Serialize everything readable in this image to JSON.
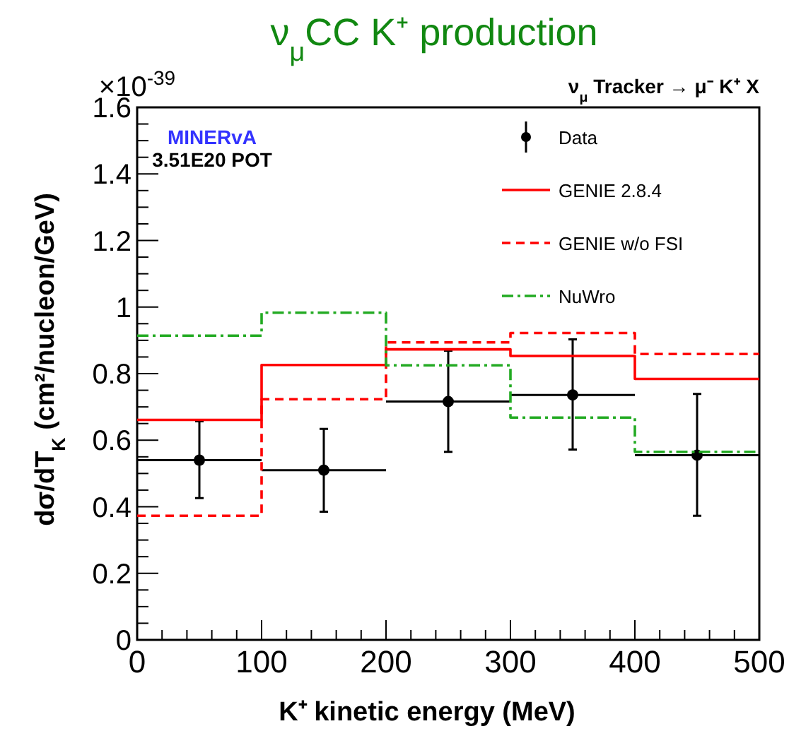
{
  "chart_data": {
    "type": "line",
    "title": "ν$_{μ}$CC K⁺ production",
    "subtitle": "ν$_{μ}$ Tracker → μ⁻ K⁺ X",
    "xlabel": "K⁺ kinetic energy (MeV)",
    "ylabel": "dσ/dT$_{K}$ (cm²/nucleon/GeV)",
    "annotations": [
      "×10$^{-39}$",
      "MINERvA",
      "3.51E20 POT"
    ],
    "x": [
      50,
      150,
      250,
      350,
      450
    ],
    "series": [
      {
        "name": "Data",
        "type": "scatter",
        "color": "#000000",
        "marker": "circle",
        "values": [
          0.54,
          0.51,
          0.716,
          0.736,
          0.555
        ],
        "errors": [
          [
            0.426,
            0.657
          ],
          [
            0.385,
            0.634
          ],
          [
            0.565,
            0.869
          ],
          [
            0.572,
            0.903
          ],
          [
            0.373,
            0.739
          ]
        ],
        "xerrors": [
          50,
          50,
          50,
          50,
          50
        ]
      },
      {
        "name": "GENIE 2.8.4",
        "type": "step",
        "color": "#ff0000",
        "line_style": "solid",
        "x": [
          0,
          100,
          200,
          300,
          400,
          500
        ],
        "values": [
          0.661,
          0.826,
          0.873,
          0.853,
          0.784,
          0.784
        ]
      },
      {
        "name": "GENIE w/o FSI",
        "type": "step",
        "color": "#ff0000",
        "line_style": "dashed",
        "x": [
          0,
          100,
          200,
          300,
          400,
          500
        ],
        "values": [
          0.373,
          0.723,
          0.894,
          0.922,
          0.859,
          0.859
        ]
      },
      {
        "name": "NuWro",
        "type": "step",
        "color": "#22aa22",
        "line_style": "dashdot",
        "x": [
          0,
          100,
          200,
          300,
          400,
          500
        ],
        "values": [
          0.914,
          0.983,
          0.825,
          0.668,
          0.565,
          0.565
        ]
      }
    ],
    "xlim": [
      0,
      500
    ],
    "ylim": [
      0,
      1.6
    ],
    "xticks": [
      0,
      {
        "value": 20,
        "label": null
      },
      {
        "value": 40,
        "label": null
      },
      {
        "value": 60,
        "label": null
      },
      {
        "value": 80,
        "label": null
      },
      100,
      {
        "value": 120,
        "label": null
      },
      {
        "value": 140,
        "label": null
      },
      {
        "value": 160,
        "label": null
      },
      {
        "value": 180,
        "label": null
      },
      200,
      {
        "value": 220,
        "label": null
      },
      {
        "value": 240,
        "label": null
      },
      {
        "value": 260,
        "label": null
      },
      {
        "value": 280,
        "label": null
      },
      300,
      {
        "value": 320,
        "label": null
      },
      {
        "value": 340,
        "label": null
      },
      {
        "value": 360,
        "label": null
      },
      {
        "value": 380,
        "label": null
      },
      400,
      {
        "value": 420,
        "label": null
      },
      {
        "value": 440,
        "label": null
      },
      {
        "value": 460,
        "label": null
      },
      {
        "value": 480,
        "label": null
      },
      500
    ],
    "yticks": [
      0,
      {
        "value": 0.05,
        "label": null
      },
      {
        "value": 0.1,
        "label": null
      },
      {
        "value": 0.15,
        "label": null
      },
      0.2,
      {
        "value": 0.25,
        "label": null
      },
      {
        "value": 0.3,
        "label": null
      },
      {
        "value": 0.35,
        "label": null
      },
      0.4,
      {
        "value": 0.45,
        "label": null
      },
      {
        "value": 0.5,
        "label": null
      },
      {
        "value": 0.55,
        "label": null
      },
      0.6,
      {
        "value": 0.65,
        "label": null
      },
      {
        "value": 0.7,
        "label": null
      },
      {
        "value": 0.75,
        "label": null
      },
      0.8,
      {
        "value": 0.85,
        "label": null
      },
      {
        "value": 0.9,
        "label": null
      },
      {
        "value": 0.95,
        "label": null
      },
      1,
      {
        "value": 1.05,
        "label": null
      },
      {
        "value": 1.1,
        "label": null
      },
      {
        "value": 1.15,
        "label": null
      },
      1.2,
      {
        "value": 1.25,
        "label": null
      },
      {
        "value": 1.3,
        "label": null
      },
      {
        "value": 1.35,
        "label": null
      },
      1.4,
      {
        "value": 1.45,
        "label": null
      },
      {
        "value": 1.5,
        "label": null
      },
      {
        "value": 1.55,
        "label": null
      },
      1.6
    ],
    "grid": false,
    "legend": "top right"
  }
}
